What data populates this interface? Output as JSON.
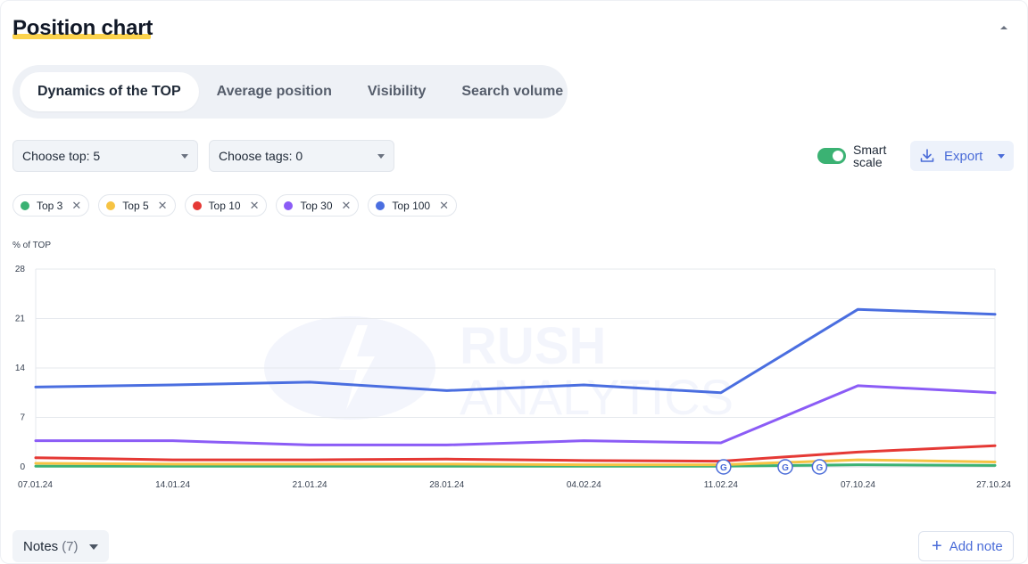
{
  "header": {
    "title": "Position chart"
  },
  "tabs": [
    {
      "label": "Dynamics of the TOP"
    },
    {
      "label": "Average position"
    },
    {
      "label": "Visibility"
    },
    {
      "label": "Search volume"
    }
  ],
  "filters": {
    "top_select": "Choose top: 5",
    "tags_select": "Choose tags: 0",
    "smart_scale_label": "Smart scale",
    "smart_scale_on": true,
    "export_label": "Export"
  },
  "notes": {
    "label": "Notes",
    "count": "(7)",
    "add_label": "Add note"
  },
  "watermark": {
    "line1": "RUSH",
    "line2": "ANALYTICS"
  },
  "colors": {
    "top3": "#3bb273",
    "top5": "#f6c343",
    "top10": "#e53935",
    "top30": "#8b5cf6",
    "top100": "#4a6ee0",
    "accent": "#4a6cd8"
  },
  "chart_data": {
    "type": "line",
    "ylabel": "% of TOP",
    "ylim": [
      0,
      28
    ],
    "yticks": [
      0,
      7,
      14,
      21,
      28
    ],
    "categories": [
      "07.01.24",
      "14.01.24",
      "21.01.24",
      "28.01.24",
      "04.02.24",
      "11.02.24",
      "07.10.24",
      "27.10.24"
    ],
    "series": [
      {
        "name": "Top 3",
        "color": "#3bb273",
        "values": [
          0.1,
          0.1,
          0.1,
          0.1,
          0.1,
          0.1,
          0.3,
          0.2
        ]
      },
      {
        "name": "Top 5",
        "color": "#f6c343",
        "values": [
          0.5,
          0.4,
          0.4,
          0.4,
          0.3,
          0.3,
          1.0,
          0.7
        ]
      },
      {
        "name": "Top 10",
        "color": "#e53935",
        "values": [
          1.3,
          1.0,
          1.0,
          1.1,
          0.9,
          0.8,
          2.1,
          3.0
        ]
      },
      {
        "name": "Top 30",
        "color": "#8b5cf6",
        "values": [
          3.7,
          3.7,
          3.1,
          3.1,
          3.7,
          3.4,
          11.5,
          10.5
        ]
      },
      {
        "name": "Top 100",
        "color": "#4a6ee0",
        "values": [
          11.3,
          11.6,
          12.0,
          10.8,
          11.6,
          10.5,
          22.3,
          21.6
        ]
      }
    ],
    "update_markers": [
      {
        "after_index": 5,
        "fraction": 0.0
      },
      {
        "after_index": 5,
        "fraction": 0.45
      },
      {
        "after_index": 5,
        "fraction": 0.7
      }
    ],
    "marker_label": "G"
  }
}
